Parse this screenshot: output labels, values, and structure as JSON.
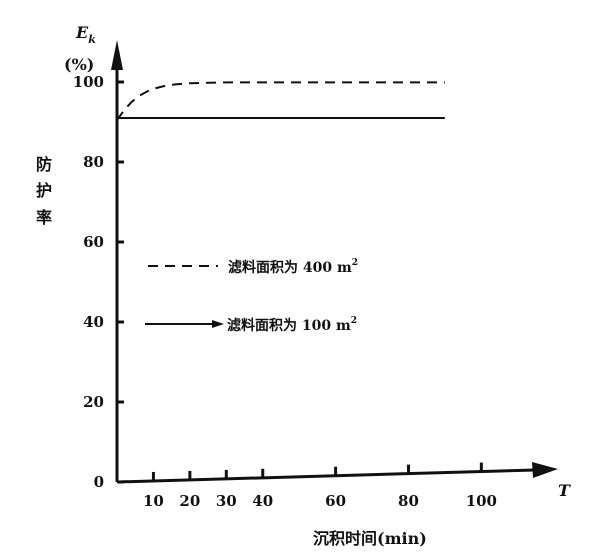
{
  "chart_data": {
    "type": "line",
    "title": "",
    "ylabel": {
      "symbol": "E",
      "subscript": "k",
      "unit": "(%)",
      "chars": [
        "防",
        "护",
        "率"
      ]
    },
    "xlabel": "沉积时间(min)",
    "x_axis_symbol": "T",
    "xlim": [
      0,
      115
    ],
    "ylim": [
      0,
      105
    ],
    "x_ticks": [
      10,
      20,
      30,
      40,
      60,
      80,
      100
    ],
    "y_ticks": [
      0,
      20,
      40,
      60,
      80,
      100
    ],
    "grid": false,
    "legend_position": "center-left",
    "series": [
      {
        "name": "滤料面积为 400 m²",
        "name_text": "滤料面积为 400 m",
        "name_sup": "2",
        "style": "dashed",
        "color": "#111111",
        "x": [
          0,
          2,
          4,
          6,
          8,
          10,
          13,
          16,
          20,
          25,
          30,
          40,
          60,
          80,
          90
        ],
        "y": [
          90.5,
          93,
          95,
          96.5,
          97.5,
          98.3,
          99,
          99.4,
          99.7,
          99.8,
          99.9,
          99.9,
          99.9,
          99.9,
          99.9
        ]
      },
      {
        "name": "滤料面积为 100 m²",
        "name_text": "滤料面积为 100 m",
        "name_sup": "2",
        "style": "solid",
        "color": "#111111",
        "x": [
          0,
          90
        ],
        "y": [
          91,
          91
        ]
      }
    ]
  }
}
